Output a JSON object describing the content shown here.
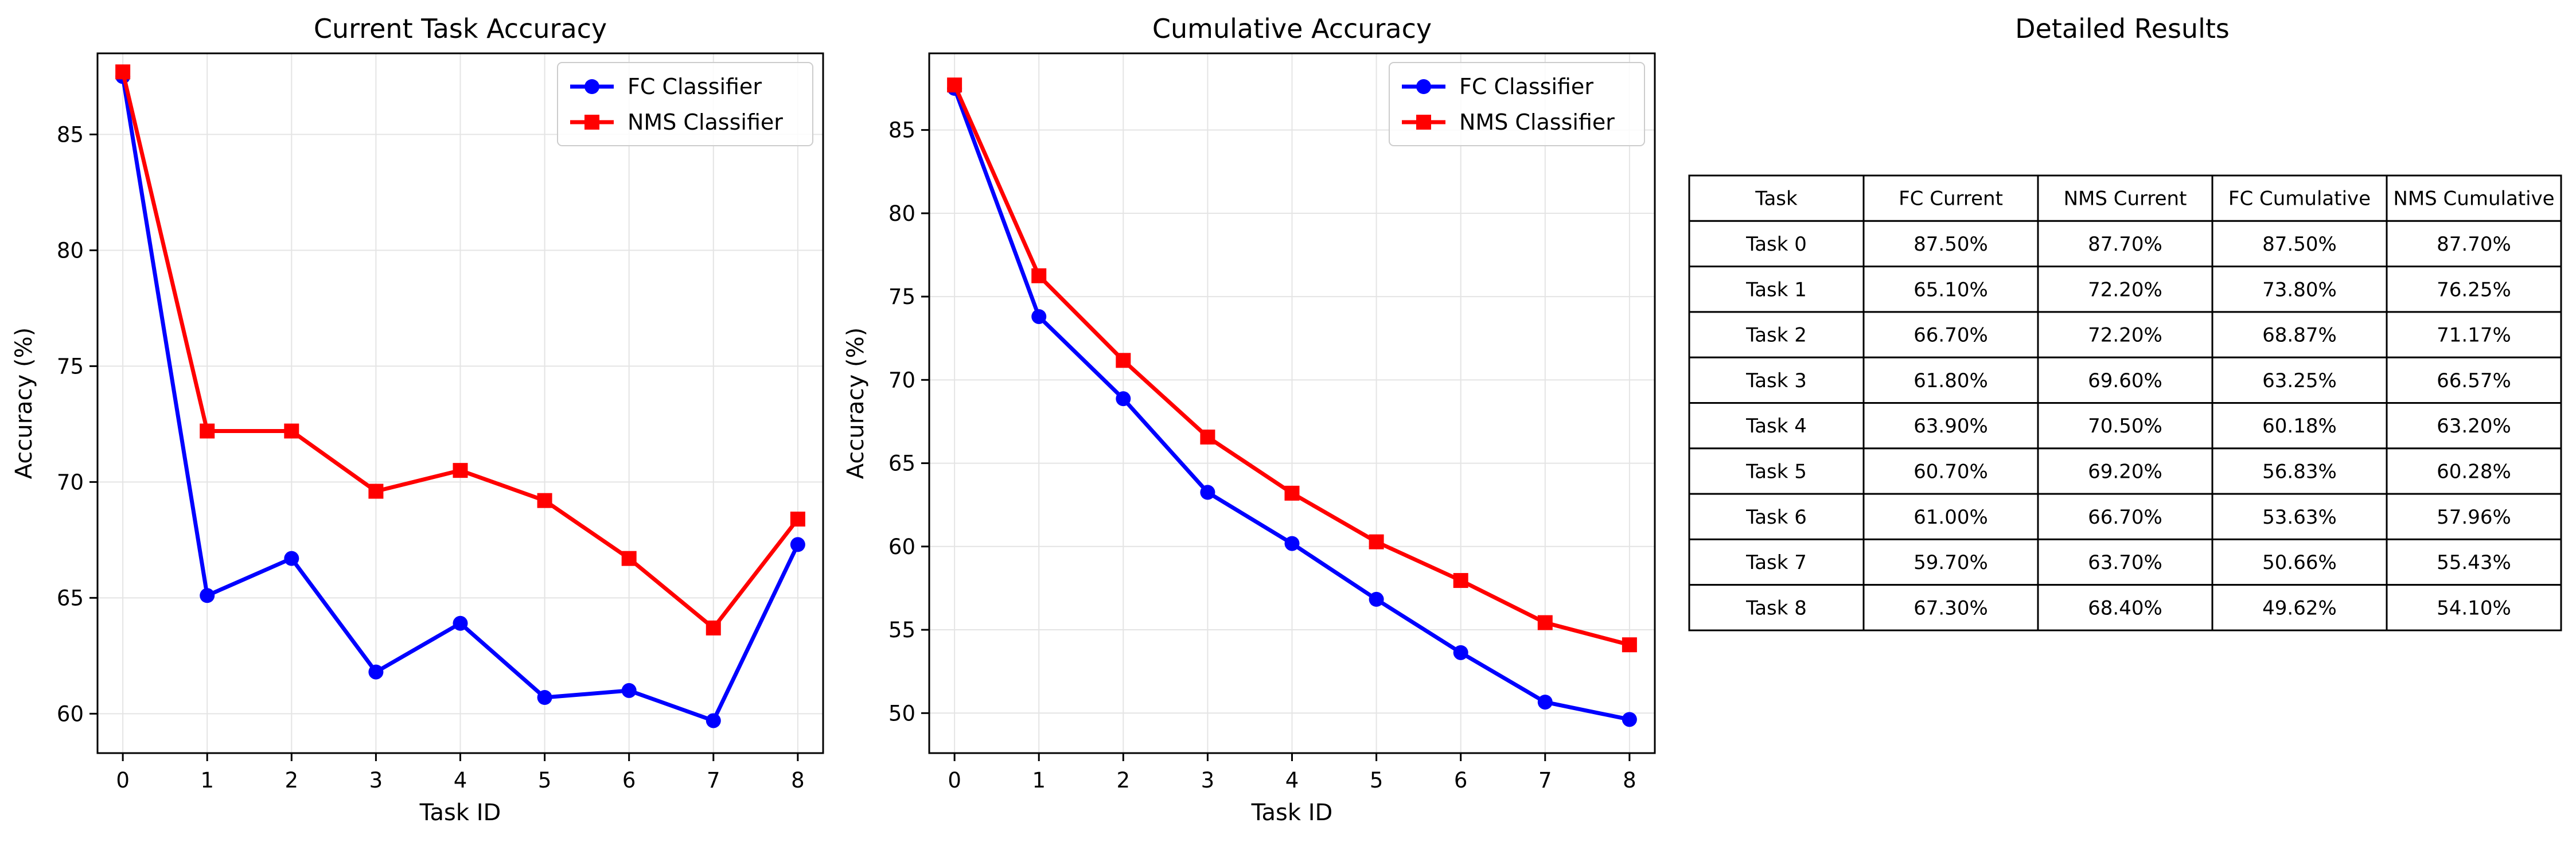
{
  "chart_data": [
    {
      "type": "line",
      "title": "Current Task Accuracy",
      "xlabel": "Task ID",
      "ylabel": "Accuracy (%)",
      "x": [
        0,
        1,
        2,
        3,
        4,
        5,
        6,
        7,
        8
      ],
      "xlim": [
        -0.3,
        8.3
      ],
      "ylim": [
        58.3,
        88.5
      ],
      "yticks": [
        60,
        65,
        70,
        75,
        80,
        85
      ],
      "grid": true,
      "legend_position": "top-right",
      "series": [
        {
          "name": "FC Classifier",
          "color": "#0000ff",
          "marker": "circle",
          "values": [
            87.5,
            65.1,
            66.7,
            61.8,
            63.9,
            60.7,
            61.0,
            59.7,
            67.3
          ]
        },
        {
          "name": "NMS Classifier",
          "color": "#ff0000",
          "marker": "square",
          "values": [
            87.7,
            72.2,
            72.2,
            69.6,
            70.5,
            69.2,
            66.7,
            63.7,
            68.4
          ]
        }
      ]
    },
    {
      "type": "line",
      "title": "Cumulative Accuracy",
      "xlabel": "Task ID",
      "ylabel": "Accuracy (%)",
      "x": [
        0,
        1,
        2,
        3,
        4,
        5,
        6,
        7,
        8
      ],
      "xlim": [
        -0.3,
        8.3
      ],
      "ylim": [
        47.6,
        89.6
      ],
      "yticks": [
        50,
        55,
        60,
        65,
        70,
        75,
        80,
        85
      ],
      "grid": true,
      "legend_position": "top-right",
      "series": [
        {
          "name": "FC Classifier",
          "color": "#0000ff",
          "marker": "circle",
          "values": [
            87.5,
            73.8,
            68.87,
            63.25,
            60.18,
            56.83,
            53.63,
            50.66,
            49.62
          ]
        },
        {
          "name": "NMS Classifier",
          "color": "#ff0000",
          "marker": "square",
          "values": [
            87.7,
            76.25,
            71.17,
            66.57,
            63.2,
            60.28,
            57.96,
            55.43,
            54.1
          ]
        }
      ]
    },
    {
      "type": "table",
      "title": "Detailed Results",
      "columns": [
        "Task",
        "FC Current",
        "NMS Current",
        "FC Cumulative",
        "NMS Cumulative"
      ],
      "rows": [
        [
          "Task 0",
          "87.50%",
          "87.70%",
          "87.50%",
          "87.70%"
        ],
        [
          "Task 1",
          "65.10%",
          "72.20%",
          "73.80%",
          "76.25%"
        ],
        [
          "Task 2",
          "66.70%",
          "72.20%",
          "68.87%",
          "71.17%"
        ],
        [
          "Task 3",
          "61.80%",
          "69.60%",
          "63.25%",
          "66.57%"
        ],
        [
          "Task 4",
          "63.90%",
          "70.50%",
          "60.18%",
          "63.20%"
        ],
        [
          "Task 5",
          "60.70%",
          "69.20%",
          "56.83%",
          "60.28%"
        ],
        [
          "Task 6",
          "61.00%",
          "66.70%",
          "53.63%",
          "57.96%"
        ],
        [
          "Task 7",
          "59.70%",
          "63.70%",
          "50.66%",
          "55.43%"
        ],
        [
          "Task 8",
          "67.30%",
          "68.40%",
          "49.62%",
          "54.10%"
        ]
      ]
    }
  ]
}
